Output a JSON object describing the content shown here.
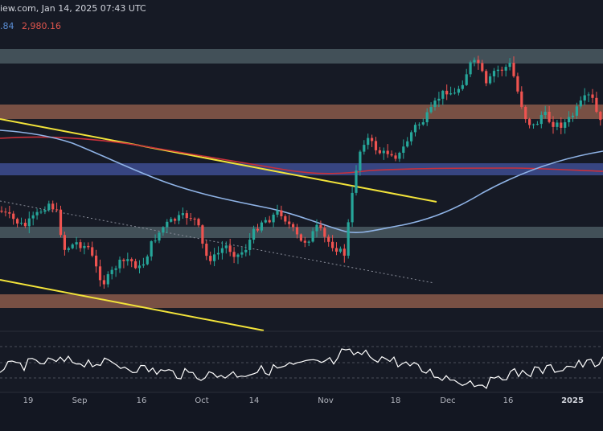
{
  "header": {
    "source_date": "iew.com, Jan 14, 2025 07:43 UTC"
  },
  "ma_values": {
    "blue": ".84",
    "red": "2,980.16"
  },
  "colors": {
    "background": "#161a25",
    "up_candle": "#26a69a",
    "down_candle": "#ef5350",
    "ma_fast": "#8fb3e6",
    "ma_slow": "#c9303a",
    "trendline": "#f2e33a",
    "zone_gray": "#4a5a62",
    "zone_brown": "#8a5a4a",
    "zone_blue": "#3b4a8c"
  },
  "chart_data": {
    "type": "candlestick",
    "x_ticks": [
      "19",
      "Sep",
      "16",
      "Oct",
      "14",
      "Nov",
      "18",
      "Dec",
      "16",
      "2025"
    ],
    "indicators": [
      "moving average (blue)",
      "moving average (red)",
      "oscillator (lower pane)"
    ],
    "zones": [
      "gray",
      "brown",
      "blue",
      "gray",
      "brown"
    ],
    "trendlines": [
      "descending yellow (upper)",
      "descending yellow (lower)",
      "dotted descending"
    ]
  }
}
